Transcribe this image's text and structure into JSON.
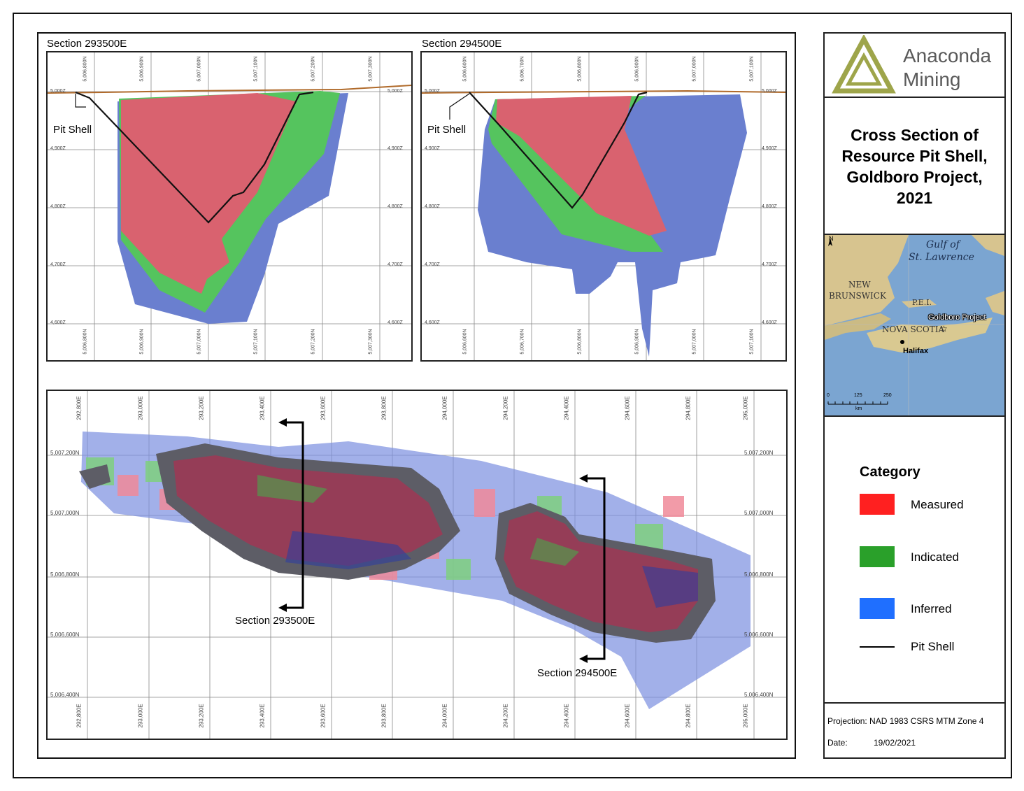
{
  "sections": [
    {
      "title": "Section 293500E",
      "pit_label": "Pit Shell",
      "northings": [
        "5,006,800N",
        "5,006,900N",
        "5,007,000N",
        "5,007,100N",
        "5,007,200N",
        "5,007,300N"
      ],
      "elevations": [
        "5,000Z",
        "4,900Z",
        "4,800Z",
        "4,700Z",
        "4,600Z"
      ]
    },
    {
      "title": "Section 294500E",
      "pit_label": "Pit Shell",
      "northings": [
        "5,006,600N",
        "5,006,700N",
        "5,006,800N",
        "5,006,900N",
        "5,007,000N",
        "5,007,100N"
      ],
      "elevations": [
        "5,000Z",
        "4,900Z",
        "4,800Z",
        "4,700Z",
        "4,600Z"
      ]
    }
  ],
  "plan": {
    "eastings": [
      "292,800E",
      "293,000E",
      "293,200E",
      "293,400E",
      "293,600E",
      "293,800E",
      "294,000E",
      "294,200E",
      "294,400E",
      "294,600E",
      "294,800E",
      "295,000E"
    ],
    "northings": [
      "5,007,200N",
      "5,007,000N",
      "5,006,800N",
      "5,006,600N",
      "5,006,400N"
    ],
    "section_labels": [
      "Section 293500E",
      "Section 294500E"
    ]
  },
  "logo": {
    "line1": "Anaconda",
    "line2": "Mining"
  },
  "title": {
    "lines": [
      "Cross Section of",
      "Resource Pit Shell,",
      "Goldboro Project,",
      "2021"
    ]
  },
  "inset_map": {
    "labels": {
      "gulf1": "Gulf of",
      "gulf2": "St. Lawrence",
      "nb1": "NEW",
      "nb2": "BRUNSWICK",
      "pei": "P.E.I.",
      "ns": "NOVA SCOTIA",
      "project": "Goldboro Project",
      "halifax": "Halifax",
      "north": "N"
    },
    "scale": {
      "ticks": [
        "0",
        "125",
        "250"
      ],
      "unit": "km"
    }
  },
  "legend": {
    "title": "Category",
    "items": [
      {
        "label": "Measured",
        "color": "#ff2020"
      },
      {
        "label": "Indicated",
        "color": "#2aa02a"
      },
      {
        "label": "Inferred",
        "color": "#1f6fff"
      },
      {
        "label": "Pit Shell",
        "color": "#000000"
      }
    ]
  },
  "footer": {
    "projection": "Projection: NAD 1983 CSRS MTM Zone 4",
    "date_label": "Date:",
    "date": "19/02/2021"
  },
  "colors": {
    "measured_section": "#d9626f",
    "indicated_section": "#55c45e",
    "inferred_section": "#6a7fcf",
    "topo": "#b06a2a",
    "logo": "#9ea54a"
  }
}
